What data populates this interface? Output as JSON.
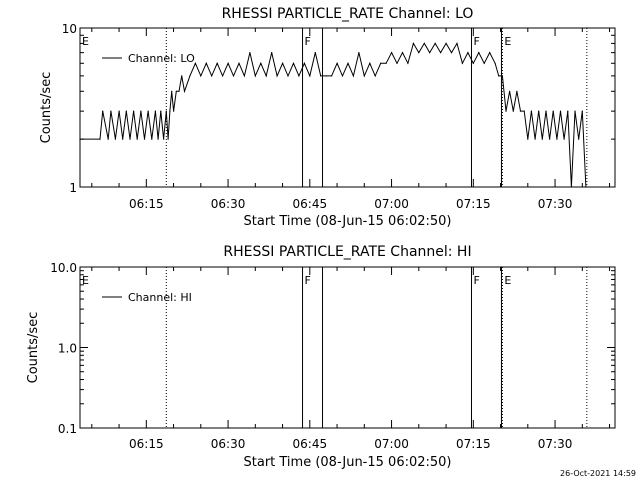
{
  "footer": {
    "timestamp": "26-Oct-2021 14:59"
  },
  "chart_data": [
    {
      "type": "line",
      "title": "RHESSI PARTICLE_RATE Channel: LO",
      "xlabel": "Start Time (08-Jun-15 06:02:50)",
      "ylabel": "Counts/sec",
      "yscale": "log",
      "ylim": [
        1,
        10
      ],
      "xlim": [
        "06:02:50",
        "07:41:00"
      ],
      "x_tick_labels": [
        "06:15",
        "06:30",
        "06:45",
        "07:00",
        "07:15",
        "07:30"
      ],
      "y_tick_labels": [
        "1",
        "10"
      ],
      "legend": {
        "position": "top-left",
        "entries": [
          "Channel: LO"
        ]
      },
      "markers": [
        {
          "label": "E",
          "time": "06:02:50",
          "style": "none"
        },
        {
          "label": "",
          "time": "06:18:40",
          "style": "dotted"
        },
        {
          "label": "F",
          "time": "06:43:40",
          "style": "solid"
        },
        {
          "label": "",
          "time": "06:47:20",
          "style": "solid"
        },
        {
          "label": "F",
          "time": "07:14:40",
          "style": "solid"
        },
        {
          "label": "E",
          "time": "07:20:20",
          "style": "dotted"
        },
        {
          "label": "",
          "time": "07:20:10",
          "style": "solid"
        },
        {
          "label": "",
          "time": "07:35:50",
          "style": "dotted"
        }
      ],
      "series": [
        {
          "name": "Channel: LO",
          "x": [
            "06:02:50",
            "06:06:30",
            "06:07:00",
            "06:08:00",
            "06:08:30",
            "06:09:20",
            "06:10:00",
            "06:10:40",
            "06:11:20",
            "06:12:00",
            "06:12:40",
            "06:13:20",
            "06:14:00",
            "06:14:40",
            "06:15:20",
            "06:16:00",
            "06:16:40",
            "06:17:10",
            "06:17:40",
            "06:18:10",
            "06:18:40",
            "06:19:00",
            "06:19:20",
            "06:19:40",
            "06:20:00",
            "06:20:30",
            "06:21:00",
            "06:21:30",
            "06:22:00",
            "06:23:00",
            "06:24:00",
            "06:25:00",
            "06:26:00",
            "06:27:00",
            "06:28:00",
            "06:29:00",
            "06:30:00",
            "06:31:00",
            "06:32:00",
            "06:33:00",
            "06:34:00",
            "06:35:00",
            "06:36:00",
            "06:37:00",
            "06:38:00",
            "06:39:00",
            "06:40:00",
            "06:41:00",
            "06:42:00",
            "06:43:00",
            "06:44:00",
            "06:45:00",
            "06:46:00",
            "06:47:00",
            "06:48:00",
            "06:49:00",
            "06:50:00",
            "06:51:00",
            "06:52:00",
            "06:53:00",
            "06:54:00",
            "06:55:00",
            "06:56:00",
            "06:57:00",
            "06:58:00",
            "06:59:00",
            "07:00:00",
            "07:01:00",
            "07:02:00",
            "07:03:00",
            "07:04:00",
            "07:05:00",
            "07:06:00",
            "07:07:00",
            "07:08:00",
            "07:09:00",
            "07:10:00",
            "07:11:00",
            "07:12:00",
            "07:13:00",
            "07:14:00",
            "07:15:00",
            "07:16:00",
            "07:17:00",
            "07:18:00",
            "07:19:00",
            "07:19:40",
            "07:20:20",
            "07:21:00",
            "07:21:40",
            "07:22:20",
            "07:23:00",
            "07:23:40",
            "07:24:20",
            "07:25:00",
            "07:25:40",
            "07:26:20",
            "07:27:00",
            "07:27:40",
            "07:28:20",
            "07:29:00",
            "07:29:40",
            "07:30:20",
            "07:31:00",
            "07:31:40",
            "07:32:20",
            "07:33:00",
            "07:33:40",
            "07:34:20",
            "07:35:00",
            "07:35:40"
          ],
          "values": [
            2,
            2,
            3,
            2,
            3,
            2,
            3,
            2,
            3,
            2,
            3,
            2,
            3,
            2,
            3,
            2,
            3,
            2,
            3,
            2,
            3,
            2,
            3,
            4,
            3,
            4,
            4,
            5,
            4,
            5,
            6,
            5,
            6,
            5,
            6,
            5,
            6,
            5,
            6,
            5,
            7,
            5,
            6,
            5,
            7,
            5,
            6,
            5,
            6,
            5,
            6,
            5,
            7,
            5,
            5,
            5,
            6,
            5,
            6,
            5,
            7,
            5,
            6,
            5,
            6,
            6,
            7,
            6,
            7,
            6,
            8,
            7,
            8,
            7,
            8,
            7,
            8,
            7,
            8,
            6,
            7,
            6,
            7,
            6,
            7,
            6,
            5,
            5,
            3,
            4,
            3,
            4,
            3,
            3,
            2,
            3,
            2,
            3,
            2,
            3,
            2,
            3,
            2,
            3,
            2,
            3,
            1,
            3,
            2,
            3,
            1
          ]
        }
      ]
    },
    {
      "type": "line",
      "title": "RHESSI PARTICLE_RATE Channel: HI",
      "xlabel": "Start Time (08-Jun-15 06:02:50)",
      "ylabel": "Counts/sec",
      "yscale": "log",
      "ylim": [
        0.1,
        10
      ],
      "xlim": [
        "06:02:50",
        "07:41:00"
      ],
      "x_tick_labels": [
        "06:15",
        "06:30",
        "06:45",
        "07:00",
        "07:15",
        "07:30"
      ],
      "y_tick_labels": [
        "0.1",
        "1.0",
        "10.0"
      ],
      "legend": {
        "position": "top-left",
        "entries": [
          "Channel: HI"
        ]
      },
      "markers": [
        {
          "label": "E",
          "time": "06:02:50",
          "style": "none"
        },
        {
          "label": "",
          "time": "06:18:40",
          "style": "dotted"
        },
        {
          "label": "F",
          "time": "06:43:40",
          "style": "solid"
        },
        {
          "label": "",
          "time": "06:47:20",
          "style": "solid"
        },
        {
          "label": "F",
          "time": "07:14:40",
          "style": "solid"
        },
        {
          "label": "E",
          "time": "07:20:20",
          "style": "dotted"
        },
        {
          "label": "",
          "time": "07:20:10",
          "style": "solid"
        },
        {
          "label": "",
          "time": "07:35:50",
          "style": "dotted"
        }
      ],
      "series": [
        {
          "name": "Channel: HI",
          "x": [],
          "values": []
        }
      ]
    }
  ]
}
